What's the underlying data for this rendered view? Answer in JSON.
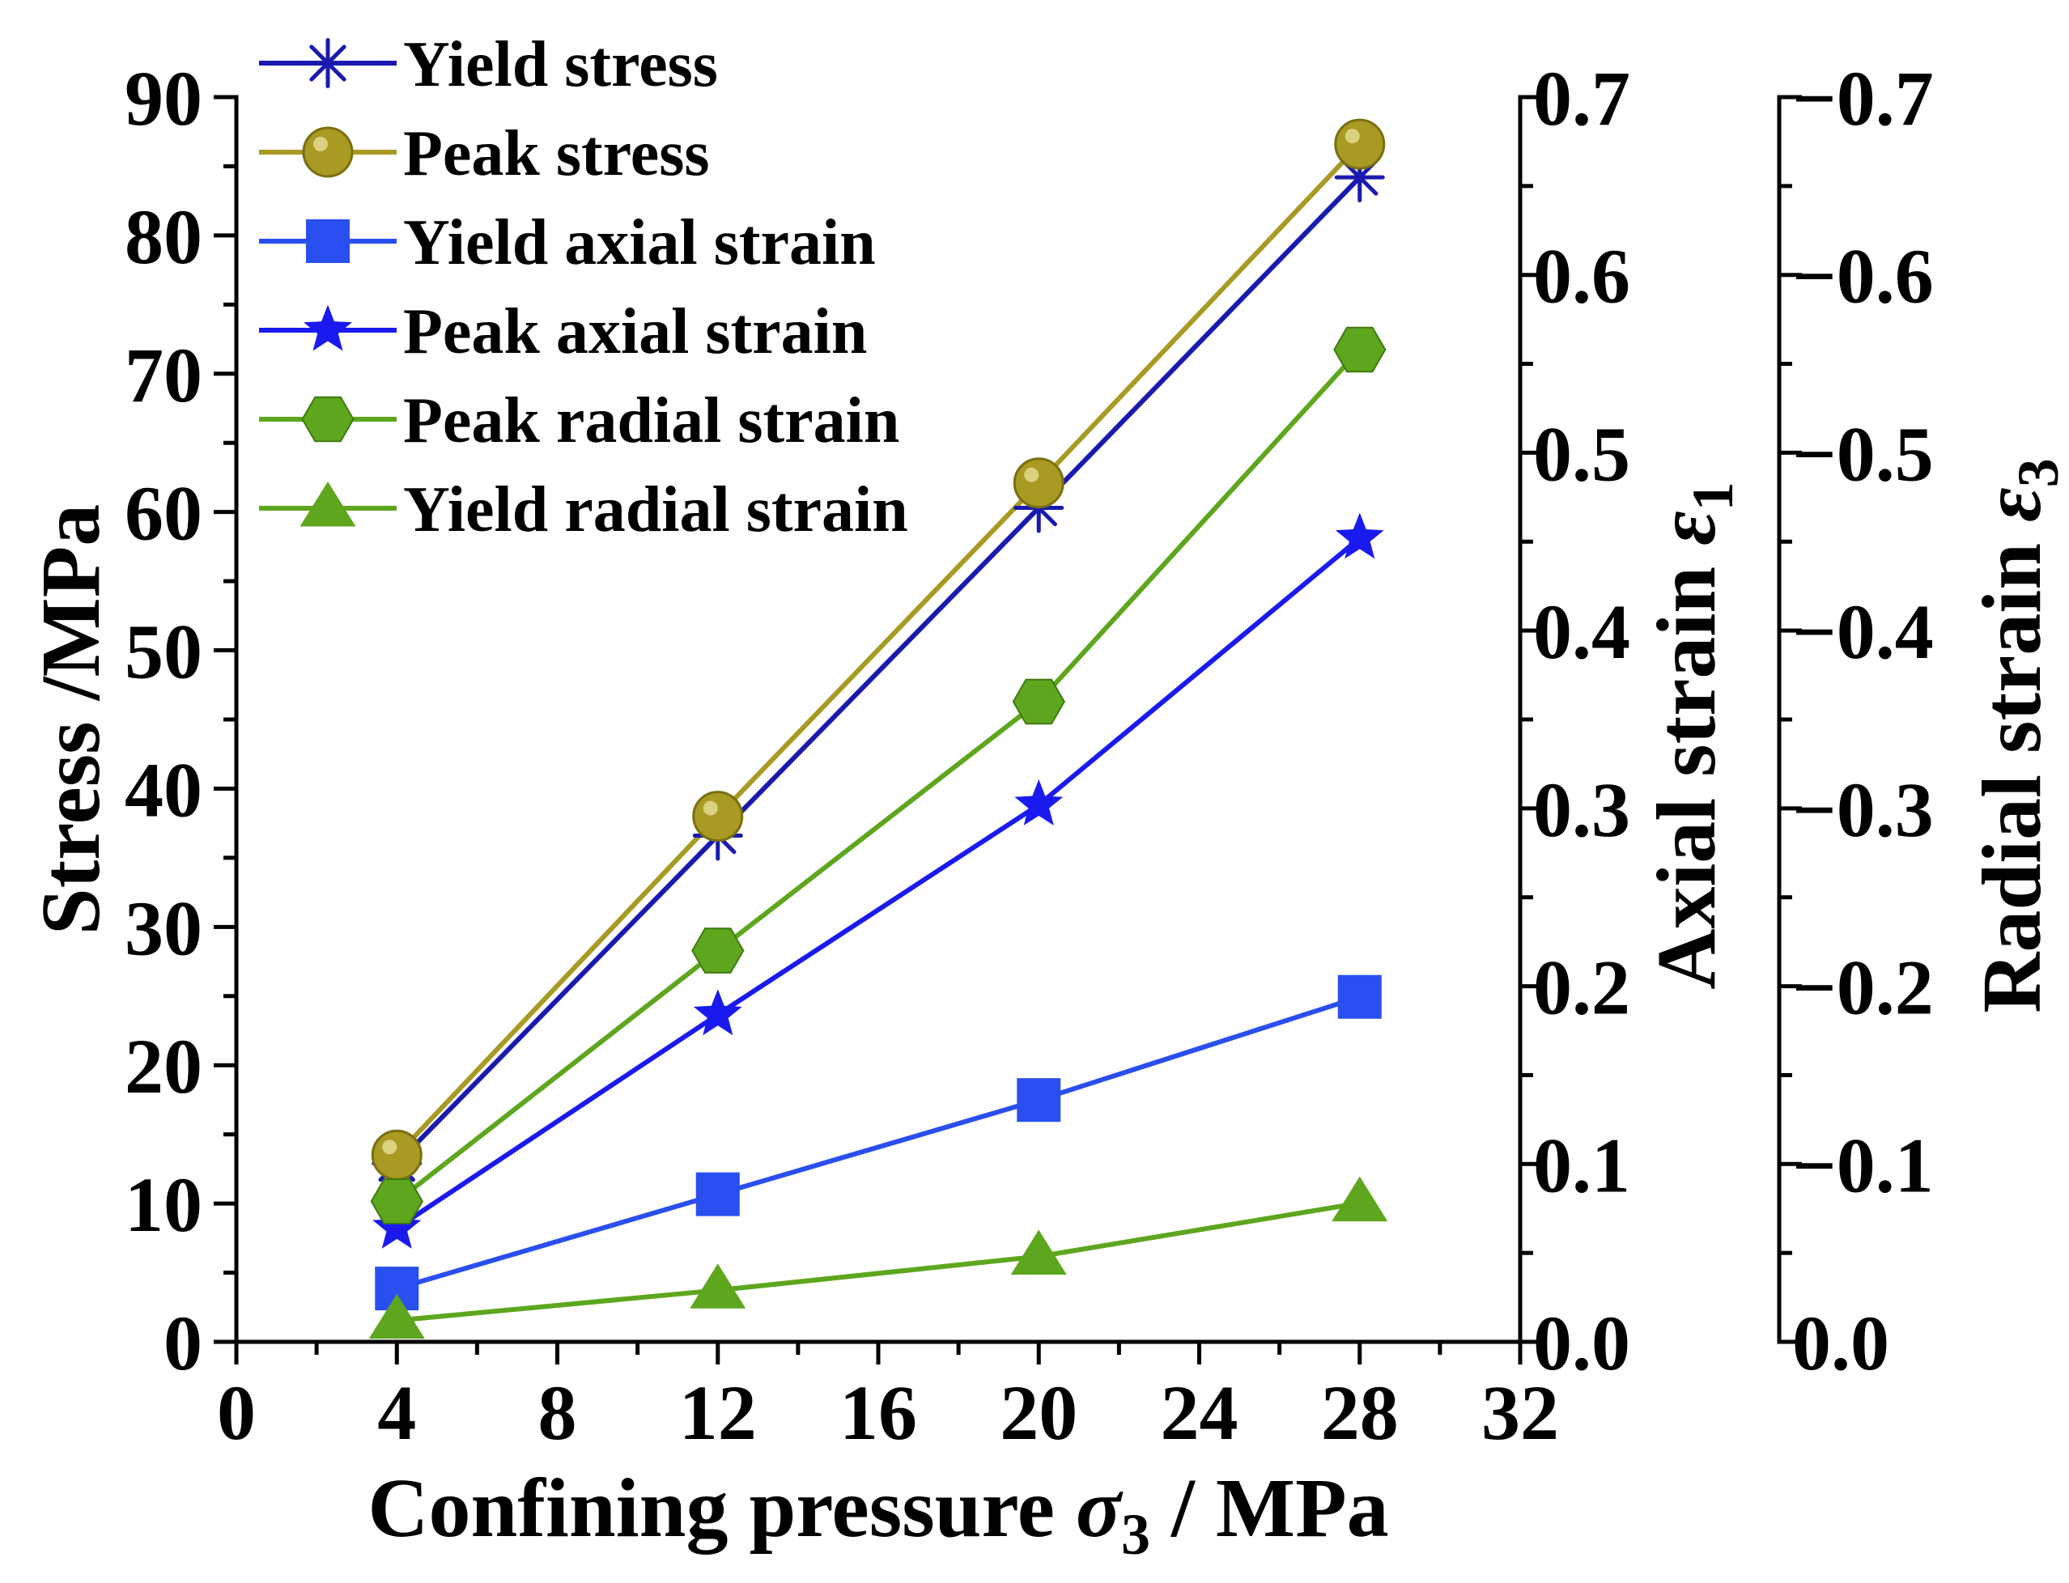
{
  "chart_data": {
    "type": "line",
    "x": [
      4,
      12,
      20,
      28
    ],
    "xlim": [
      0,
      32
    ],
    "xticks": [
      0,
      4,
      8,
      12,
      16,
      20,
      24,
      28,
      32
    ],
    "xticklabels": [
      "0",
      "4",
      "8",
      "12",
      "16",
      "20",
      "24",
      "28",
      "32"
    ],
    "xlabel": {
      "prefix": "Confining pressure",
      "symbol": "σ",
      "sub": "3",
      "suffix": "/ MPa"
    },
    "axes": {
      "stress": {
        "label": "Stress /MPa",
        "ylim": [
          0,
          90
        ],
        "ticks": [
          0,
          10,
          20,
          30,
          40,
          50,
          60,
          70,
          80,
          90
        ],
        "ticklabels": [
          "0",
          "10",
          "20",
          "30",
          "40",
          "50",
          "60",
          "70",
          "80",
          "90"
        ]
      },
      "axial": {
        "label": {
          "prefix": "Axial strain",
          "symbol": "ε",
          "sub": "1"
        },
        "ylim": [
          0,
          0.7
        ],
        "ticks": [
          0.0,
          0.1,
          0.2,
          0.3,
          0.4,
          0.5,
          0.6,
          0.7
        ],
        "ticklabels": [
          "0.0",
          "0.1",
          "0.2",
          "0.3",
          "0.4",
          "0.5",
          "0.6",
          "0.7"
        ]
      },
      "radial": {
        "label": {
          "prefix": "Radial strain",
          "symbol": "ε",
          "sub": "3"
        },
        "ylim": [
          0,
          -0.7
        ],
        "ticks": [
          0.0,
          -0.1,
          -0.2,
          -0.3,
          -0.4,
          -0.5,
          -0.6,
          -0.7
        ],
        "ticklabels": [
          "0.0",
          "−0.1",
          "−0.2",
          "−0.3",
          "−0.4",
          "−0.5",
          "−0.6",
          "−0.7"
        ]
      }
    },
    "series": [
      {
        "name": "Yield stress",
        "axis": "stress",
        "values": [
          12.9,
          36.6,
          60.3,
          84.2
        ],
        "color": "#1a1ab0",
        "marker": "asterisk"
      },
      {
        "name": "Peak stress",
        "axis": "stress",
        "values": [
          13.5,
          38.0,
          62.1,
          86.6
        ],
        "color": "#a89a22",
        "marker": "circle"
      },
      {
        "name": "Yield axial strain",
        "axis": "axial",
        "values": [
          0.03,
          0.083,
          0.136,
          0.194
        ],
        "color": "#2a4ff0",
        "marker": "square"
      },
      {
        "name": "Peak axial strain",
        "axis": "axial",
        "values": [
          0.064,
          0.184,
          0.302,
          0.452
        ],
        "color": "#1a1af0",
        "marker": "star"
      },
      {
        "name": "Peak radial strain",
        "axis": "radial",
        "values": [
          -0.079,
          -0.22,
          -0.36,
          -0.558
        ],
        "color": "#5ea61e",
        "marker": "hexagon"
      },
      {
        "name": "Yield radial strain",
        "axis": "radial",
        "values": [
          -0.012,
          -0.029,
          -0.048,
          -0.078
        ],
        "color": "#5ea61e",
        "marker": "triangle"
      }
    ],
    "legend": "top-left"
  }
}
